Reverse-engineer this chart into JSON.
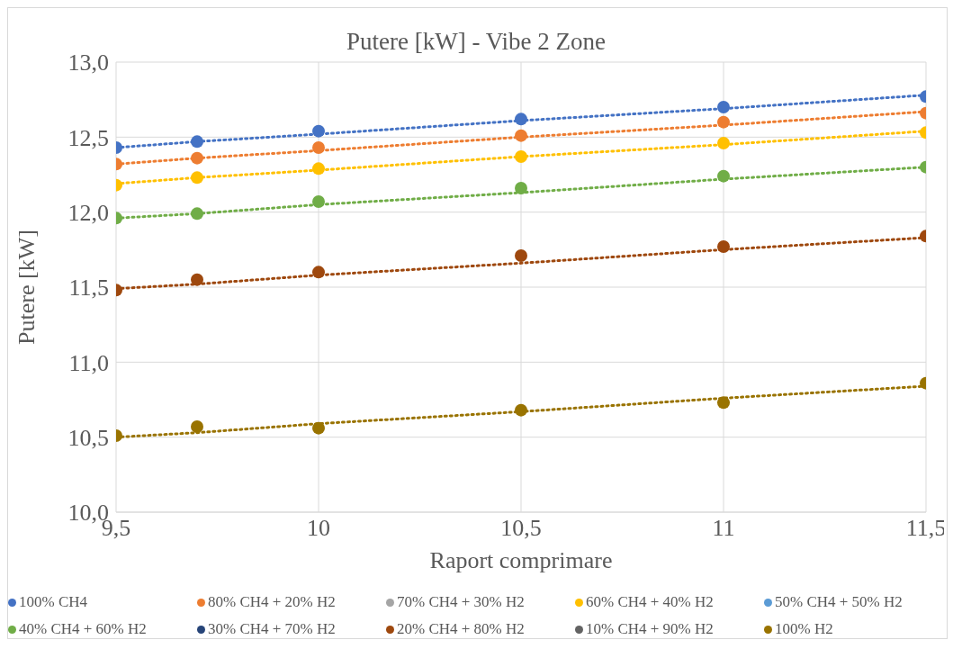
{
  "chart_data": {
    "type": "scatter",
    "title": "Putere [kW] - Vibe 2 Zone",
    "xlabel": "Raport comprimare",
    "ylabel": "Putere [kW]",
    "x": [
      9.5,
      9.7,
      10,
      10.5,
      11,
      11.5
    ],
    "xlim": [
      9.5,
      11.5
    ],
    "xticks": [
      {
        "value": 9.5,
        "label": "9,5"
      },
      10,
      {
        "value": 10.5,
        "label": "10,5"
      },
      11,
      {
        "value": 11.5,
        "label": "11,5"
      }
    ],
    "ylim": [
      10,
      13
    ],
    "yticks": [
      {
        "value": 10,
        "label": "10,0"
      },
      {
        "value": 10.5,
        "label": "10,5"
      },
      {
        "value": 11,
        "label": "11,0"
      },
      {
        "value": 11.5,
        "label": "11,5"
      },
      {
        "value": 12,
        "label": "12,0"
      },
      {
        "value": 12.5,
        "label": "12,5"
      },
      {
        "value": 13,
        "label": "13,0"
      }
    ],
    "grid": true,
    "legend": "bottom",
    "marker": "circle",
    "series": [
      {
        "name": "100% CH4",
        "color": "#4472c4",
        "values": [
          12.43,
          12.47,
          12.54,
          12.62,
          12.7,
          12.77
        ]
      },
      {
        "name": "80% CH4 + 20% H2",
        "color": "#ed7d31",
        "values": [
          12.32,
          12.36,
          12.43,
          12.51,
          12.6,
          12.66
        ]
      },
      {
        "name": "70% CH4 + 30% H2",
        "color": "#a5a5a5",
        "values": [
          null,
          null,
          null,
          null,
          null,
          null
        ]
      },
      {
        "name": "60% CH4 + 40% H2",
        "color": "#ffc000",
        "values": [
          12.18,
          12.23,
          12.29,
          12.37,
          12.46,
          12.53
        ]
      },
      {
        "name": "50% CH4 + 50% H2",
        "color": "#5b9bd5",
        "values": [
          null,
          null,
          null,
          null,
          null,
          null
        ]
      },
      {
        "name": "40% CH4 + 60% H2",
        "color": "#70ad47",
        "values": [
          11.96,
          11.99,
          12.07,
          12.16,
          12.24,
          12.3
        ]
      },
      {
        "name": "30% CH4 + 70% H2",
        "color": "#264478",
        "values": [
          null,
          null,
          null,
          null,
          null,
          null
        ]
      },
      {
        "name": "20% CH4 + 80% H2",
        "color": "#9e480e",
        "values": [
          11.48,
          11.55,
          11.6,
          11.71,
          11.77,
          11.84
        ]
      },
      {
        "name": "10% CH4 + 90% H2",
        "color": "#636363",
        "values": [
          null,
          null,
          null,
          null,
          null,
          null
        ]
      },
      {
        "name": "100% H2",
        "color": "#997300",
        "values": [
          10.51,
          10.57,
          10.56,
          10.68,
          10.73,
          10.86
        ]
      },
      {
        "type": "line",
        "color": "#4472c4",
        "values": [
          12.43,
          12.47,
          12.52,
          12.61,
          12.69,
          12.78
        ],
        "line_style": "dotted",
        "marker": "none"
      },
      {
        "type": "line",
        "color": "#ed7d31",
        "values": [
          12.32,
          12.36,
          12.41,
          12.5,
          12.58,
          12.67
        ],
        "line_style": "dotted",
        "marker": "none"
      },
      {
        "type": "line",
        "color": "#ffc000",
        "values": [
          12.19,
          12.23,
          12.28,
          12.37,
          12.45,
          12.54
        ],
        "line_style": "dotted",
        "marker": "none"
      },
      {
        "type": "line",
        "color": "#70ad47",
        "values": [
          11.96,
          11.99,
          12.05,
          12.13,
          12.22,
          12.3
        ],
        "line_style": "dotted",
        "marker": "none"
      },
      {
        "type": "line",
        "color": "#9e480e",
        "values": [
          11.49,
          11.52,
          11.58,
          11.66,
          11.75,
          11.83
        ],
        "line_style": "dotted",
        "marker": "none"
      },
      {
        "type": "line",
        "color": "#997300",
        "values": [
          10.5,
          10.53,
          10.59,
          10.67,
          10.76,
          10.84
        ],
        "line_style": "dotted",
        "marker": "none"
      }
    ]
  }
}
